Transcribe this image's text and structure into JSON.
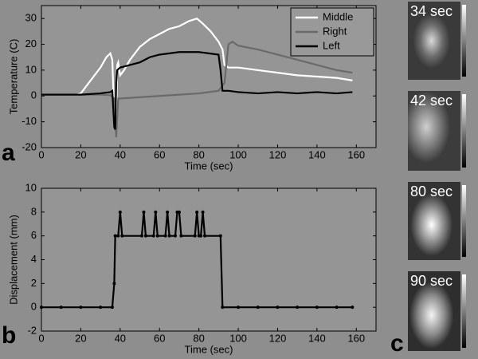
{
  "chart_data": [
    {
      "type": "line",
      "ylabel": "Temperature (C)",
      "xlabel": "Time (sec)",
      "xlim": [
        0,
        170
      ],
      "xticks": [
        0,
        20,
        40,
        60,
        80,
        100,
        120,
        140,
        160
      ],
      "ylim": [
        -20,
        35
      ],
      "yticks": [
        -20,
        -10,
        0,
        10,
        20,
        30
      ],
      "legend": "upper right",
      "markers": false,
      "series": [
        {
          "name": "Middle",
          "color": "#ffffff",
          "x": [
            0,
            18,
            20,
            25,
            30,
            33,
            35,
            36,
            37,
            38,
            38.5,
            39,
            40,
            42,
            45,
            50,
            55,
            60,
            65,
            70,
            75,
            79,
            82,
            86,
            90,
            92,
            93,
            95,
            100,
            110,
            120,
            130,
            140,
            150,
            158
          ],
          "values": [
            0.5,
            0.5,
            1,
            6,
            11,
            15,
            16.5,
            14,
            -8,
            -12,
            12,
            13,
            8,
            10,
            14,
            19,
            22,
            24,
            26,
            27,
            29,
            30,
            28,
            25,
            21,
            18,
            12,
            11,
            11,
            10,
            9,
            8,
            7.5,
            7,
            6
          ]
        },
        {
          "name": "Right",
          "color": "#6a6a6a",
          "x": [
            0,
            30,
            35,
            37,
            38,
            39,
            40,
            50,
            60,
            70,
            80,
            90,
            93,
            95,
            97,
            100,
            110,
            120,
            130,
            140,
            150,
            158
          ],
          "values": [
            0.5,
            0.5,
            0.3,
            -1,
            -16,
            -1,
            -1,
            -0.5,
            0,
            0.5,
            1,
            2,
            5,
            20,
            21,
            19.5,
            18,
            16,
            14,
            12,
            10,
            9
          ]
        },
        {
          "name": "Left",
          "color": "#000000",
          "x": [
            0,
            20,
            30,
            35,
            36,
            37,
            37.5,
            38,
            38.5,
            40,
            45,
            50,
            55,
            60,
            65,
            70,
            80,
            85,
            90,
            91,
            92,
            95,
            100,
            110,
            120,
            130,
            140,
            150,
            158
          ],
          "values": [
            0.5,
            0.5,
            1,
            1.5,
            2,
            -12,
            -13,
            5,
            10,
            11,
            12,
            13,
            15,
            16,
            16.5,
            17,
            17,
            16.5,
            16,
            10,
            2,
            2,
            1.5,
            1,
            1.5,
            1,
            1.5,
            1,
            1.5
          ]
        }
      ]
    },
    {
      "type": "line",
      "ylabel": "Displacement (mm)",
      "xlabel": "Time (sec)",
      "xlim": [
        0,
        170
      ],
      "xticks": [
        0,
        20,
        40,
        60,
        80,
        100,
        120,
        140,
        160
      ],
      "ylim": [
        -2,
        10
      ],
      "yticks": [
        -2,
        0,
        2,
        4,
        6,
        8,
        10
      ],
      "markers": true,
      "series": [
        {
          "color": "#000000",
          "x": [
            0,
            10,
            20,
            30,
            36,
            37,
            37.5,
            39,
            40,
            41,
            51,
            52,
            53,
            57,
            58,
            59,
            63,
            64,
            65,
            68,
            69,
            70,
            71,
            78,
            79,
            80,
            81,
            82,
            83,
            91,
            92,
            100,
            110,
            120,
            130,
            140,
            150,
            158
          ],
          "values": [
            0,
            0,
            0,
            0,
            0,
            2,
            6,
            6,
            8,
            6,
            6,
            8,
            6,
            6,
            8,
            6,
            6,
            8,
            6,
            6,
            8,
            8,
            6,
            6,
            8,
            6,
            6,
            8,
            6,
            6,
            0,
            0,
            0,
            0,
            0,
            0,
            0,
            0
          ]
        }
      ]
    }
  ],
  "panel_labels": [
    "a",
    "b",
    "c"
  ],
  "thumbnails": [
    "34 sec",
    "42 sec",
    "80 sec",
    "90 sec"
  ]
}
